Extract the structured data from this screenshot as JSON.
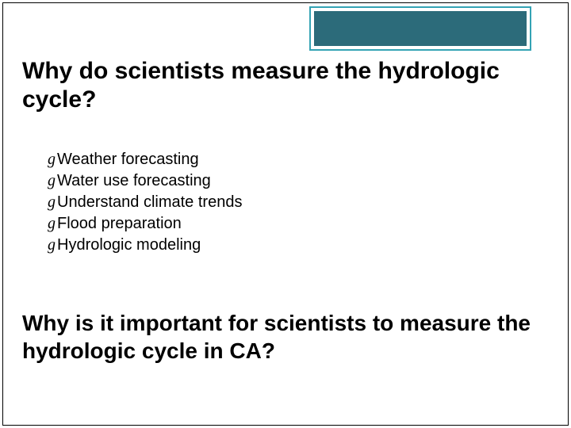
{
  "slide": {
    "title": "Why do scientists measure the hydrologic cycle?",
    "bullets": [
      "Weather forecasting",
      "Water use forecasting",
      "Understand climate trends",
      "Flood preparation",
      "Hydrologic modeling"
    ],
    "subtitle": "Why is it important for scientists to measure the hydrologic cycle in CA?"
  },
  "style": {
    "accent_border": "#34a3b4",
    "accent_fill": "#2c6b7a",
    "background": "#ffffff",
    "text_color": "#000000",
    "title_fontsize": 30,
    "bullet_fontsize": 20,
    "subtitle_fontsize": 28,
    "bullet_glyph": "g"
  }
}
